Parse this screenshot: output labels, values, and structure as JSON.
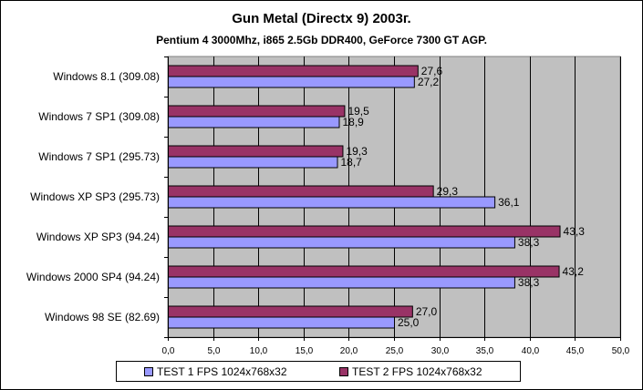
{
  "chart_data": {
    "type": "bar",
    "orientation": "horizontal",
    "title": "Gun Metal (Directx 9) 2003г.",
    "subtitle": "Pentium 4 3000Mhz, i865 2.5Gb DDR400, GeForce 7300 GT AGP.",
    "categories": [
      "Windows 8.1 (309.08)",
      "Windows 7 SP1 (309.08)",
      "Windows 7 SP1 (295.73)",
      "Windows XP SP3 (295.73)",
      "Windows XP SP3 (94.24)",
      "Windows 2000 SP4 (94.24)",
      "Windows 98 SE (82.69)"
    ],
    "series": [
      {
        "name": "TEST 1 FPS 1024x768x32",
        "color": "#9999ff",
        "values": [
          27.2,
          18.9,
          18.7,
          36.1,
          38.3,
          38.3,
          25.0
        ],
        "labels": [
          "27,2",
          "18,9",
          "18,7",
          "36,1",
          "38,3",
          "38,3",
          "25,0"
        ]
      },
      {
        "name": "TEST 2 FPS 1024x768x32",
        "color": "#993366",
        "values": [
          27.6,
          19.5,
          19.3,
          29.3,
          43.3,
          43.2,
          27.0
        ],
        "labels": [
          "27,6",
          "19,5",
          "19,3",
          "29,3",
          "43,3",
          "43,2",
          "27,0"
        ]
      }
    ],
    "xlim": [
      0,
      50
    ],
    "xticks": [
      "0,0",
      "5,0",
      "10,0",
      "15,0",
      "20,0",
      "25,0",
      "30,0",
      "35,0",
      "40,0",
      "45,0",
      "50,0"
    ],
    "xlabel": "",
    "ylabel": "",
    "grid": true,
    "plot_background": "#c0c0c0",
    "legend_position": "bottom"
  }
}
